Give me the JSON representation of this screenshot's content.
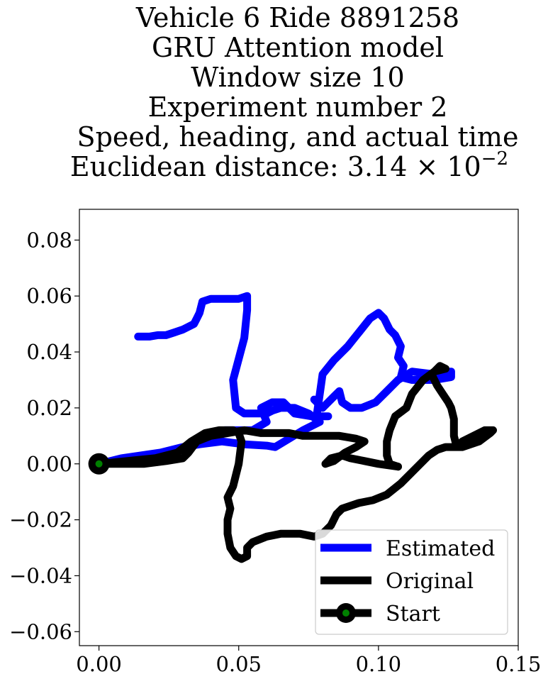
{
  "chart_data": {
    "type": "line",
    "title_lines": [
      "Vehicle 6 Ride 8891258",
      "GRU Attention model",
      "Window size 10",
      "Experiment number 2",
      "Speed, heading, and actual time",
      "Euclidean distance: 3.14 × 10"
    ],
    "title_superscript": "−2",
    "xlabel": "",
    "ylabel": "",
    "xlim": [
      -0.007,
      0.15
    ],
    "ylim": [
      -0.065,
      0.091
    ],
    "xticks": [
      0.0,
      0.05,
      0.1,
      0.15
    ],
    "xtick_labels": [
      "0.00",
      "0.05",
      "0.10",
      "0.15"
    ],
    "yticks": [
      -0.06,
      -0.04,
      -0.02,
      0.0,
      0.02,
      0.04,
      0.06,
      0.08
    ],
    "ytick_labels": [
      "−0.06",
      "−0.04",
      "−0.02",
      "0.00",
      "0.02",
      "0.04",
      "0.06",
      "0.08"
    ],
    "grid": false,
    "legend_position": "bottom-right",
    "series": [
      {
        "name": "Estimated",
        "color": "#0000ff",
        "points": [
          [
            0.0,
            0.0
          ],
          [
            0.008,
            0.002
          ],
          [
            0.015,
            0.003
          ],
          [
            0.022,
            0.004
          ],
          [
            0.03,
            0.006
          ],
          [
            0.036,
            0.007
          ],
          [
            0.044,
            0.008
          ],
          [
            0.052,
            0.007
          ],
          [
            0.06,
            0.0065
          ],
          [
            0.063,
            0.006
          ],
          [
            0.068,
            0.009
          ],
          [
            0.073,
            0.012
          ],
          [
            0.079,
            0.015
          ],
          [
            0.075,
            0.018
          ],
          [
            0.07,
            0.02
          ],
          [
            0.065,
            0.02
          ],
          [
            0.062,
            0.019
          ],
          [
            0.06,
            0.018
          ],
          [
            0.052,
            0.018
          ],
          [
            0.049,
            0.02
          ],
          [
            0.048,
            0.03
          ],
          [
            0.052,
            0.045
          ],
          [
            0.053,
            0.055
          ],
          [
            0.053,
            0.06
          ],
          [
            0.05,
            0.059
          ],
          [
            0.045,
            0.059
          ],
          [
            0.04,
            0.059
          ],
          [
            0.037,
            0.058
          ],
          [
            0.036,
            0.054
          ],
          [
            0.035,
            0.052
          ],
          [
            0.034,
            0.05
          ],
          [
            0.03,
            0.048
          ],
          [
            0.027,
            0.047
          ],
          [
            0.024,
            0.046
          ],
          [
            0.021,
            0.046
          ],
          [
            0.018,
            0.0455
          ],
          [
            0.014,
            0.0455
          ]
        ],
        "points_2": [
          [
            0.082,
            0.017
          ],
          [
            0.076,
            0.017
          ],
          [
            0.07,
            0.018
          ],
          [
            0.066,
            0.022
          ],
          [
            0.062,
            0.022
          ],
          [
            0.058,
            0.02
          ],
          [
            0.06,
            0.015
          ],
          [
            0.055,
            0.012
          ],
          [
            0.05,
            0.012
          ],
          [
            0.045,
            0.012
          ]
        ],
        "points_3": [
          [
            0.078,
            0.018
          ],
          [
            0.079,
            0.025
          ],
          [
            0.08,
            0.032
          ],
          [
            0.084,
            0.037
          ],
          [
            0.089,
            0.042
          ],
          [
            0.093,
            0.047
          ],
          [
            0.097,
            0.052
          ],
          [
            0.1,
            0.054
          ],
          [
            0.102,
            0.052
          ],
          [
            0.104,
            0.048
          ],
          [
            0.106,
            0.046
          ],
          [
            0.108,
            0.042
          ],
          [
            0.107,
            0.038
          ],
          [
            0.109,
            0.035
          ],
          [
            0.108,
            0.031
          ],
          [
            0.112,
            0.03
          ],
          [
            0.12,
            0.03
          ],
          [
            0.126,
            0.031
          ],
          [
            0.126,
            0.033
          ],
          [
            0.12,
            0.032
          ],
          [
            0.112,
            0.033
          ],
          [
            0.107,
            0.03
          ],
          [
            0.103,
            0.026
          ],
          [
            0.099,
            0.022
          ],
          [
            0.094,
            0.02
          ],
          [
            0.09,
            0.02
          ],
          [
            0.087,
            0.022
          ],
          [
            0.086,
            0.026
          ],
          [
            0.084,
            0.024
          ],
          [
            0.082,
            0.022
          ],
          [
            0.08,
            0.02
          ],
          [
            0.077,
            0.023
          ]
        ]
      },
      {
        "name": "Original",
        "color": "#000000",
        "points": [
          [
            0.0,
            0.0
          ],
          [
            0.01,
            0.001
          ],
          [
            0.02,
            0.002
          ],
          [
            0.028,
            0.004
          ],
          [
            0.033,
            0.008
          ],
          [
            0.038,
            0.011
          ],
          [
            0.043,
            0.012
          ],
          [
            0.048,
            0.012
          ],
          [
            0.05,
            0.011
          ],
          [
            0.051,
            0.008
          ],
          [
            0.05,
            0.0
          ],
          [
            0.048,
            -0.008
          ],
          [
            0.046,
            -0.012
          ],
          [
            0.047,
            -0.016
          ],
          [
            0.046,
            -0.02
          ],
          [
            0.046,
            -0.025
          ],
          [
            0.047,
            -0.03
          ],
          [
            0.049,
            -0.033
          ],
          [
            0.051,
            -0.034
          ],
          [
            0.053,
            -0.033
          ],
          [
            0.053,
            -0.03
          ],
          [
            0.055,
            -0.028
          ],
          [
            0.06,
            -0.026
          ],
          [
            0.065,
            -0.025
          ],
          [
            0.072,
            -0.025
          ],
          [
            0.077,
            -0.026
          ],
          [
            0.08,
            -0.025
          ],
          [
            0.083,
            -0.022
          ],
          [
            0.085,
            -0.018
          ],
          [
            0.087,
            -0.016
          ],
          [
            0.093,
            -0.014
          ],
          [
            0.098,
            -0.013
          ],
          [
            0.103,
            -0.011
          ],
          [
            0.108,
            -0.007
          ],
          [
            0.113,
            -0.002
          ],
          [
            0.118,
            0.003
          ],
          [
            0.121,
            0.005
          ],
          [
            0.124,
            0.006
          ],
          [
            0.13,
            0.006
          ],
          [
            0.136,
            0.008
          ],
          [
            0.14,
            0.011
          ],
          [
            0.141,
            0.012
          ],
          [
            0.138,
            0.012
          ],
          [
            0.134,
            0.01
          ],
          [
            0.13,
            0.008
          ],
          [
            0.128,
            0.006
          ],
          [
            0.127,
            0.01
          ],
          [
            0.127,
            0.016
          ],
          [
            0.126,
            0.02
          ],
          [
            0.125,
            0.022
          ],
          [
            0.123,
            0.025
          ],
          [
            0.121,
            0.028
          ],
          [
            0.119,
            0.032
          ],
          [
            0.122,
            0.035
          ],
          [
            0.124,
            0.034
          ],
          [
            0.12,
            0.033
          ],
          [
            0.116,
            0.03
          ],
          [
            0.112,
            0.025
          ],
          [
            0.11,
            0.02
          ],
          [
            0.106,
            0.017
          ],
          [
            0.104,
            0.012
          ],
          [
            0.103,
            0.008
          ],
          [
            0.103,
            0.003
          ],
          [
            0.104,
            0.0
          ],
          [
            0.107,
            -0.001
          ]
        ],
        "points_2": [
          [
            0.107,
            -0.001
          ],
          [
            0.1,
            0.0
          ],
          [
            0.095,
            0.001
          ],
          [
            0.09,
            0.002
          ],
          [
            0.087,
            0.003
          ],
          [
            0.083,
            0.002
          ],
          [
            0.081,
            0.0
          ],
          [
            0.084,
            0.001
          ],
          [
            0.088,
            0.004
          ],
          [
            0.092,
            0.006
          ],
          [
            0.095,
            0.008
          ],
          [
            0.092,
            0.009
          ],
          [
            0.086,
            0.01
          ],
          [
            0.082,
            0.01
          ],
          [
            0.078,
            0.01
          ],
          [
            0.073,
            0.01
          ],
          [
            0.068,
            0.011
          ],
          [
            0.062,
            0.011
          ],
          [
            0.058,
            0.011
          ],
          [
            0.052,
            0.012
          ],
          [
            0.046,
            0.011
          ],
          [
            0.04,
            0.01
          ],
          [
            0.035,
            0.008
          ],
          [
            0.032,
            0.004
          ],
          [
            0.03,
            0.002
          ],
          [
            0.024,
            0.001
          ],
          [
            0.016,
            0.0
          ],
          [
            0.008,
            0.0
          ],
          [
            0.0,
            0.0
          ]
        ]
      },
      {
        "name": "Start",
        "color": "#000000",
        "marker_color": "#008000",
        "points": [
          [
            0.0,
            0.0
          ]
        ]
      }
    ]
  }
}
